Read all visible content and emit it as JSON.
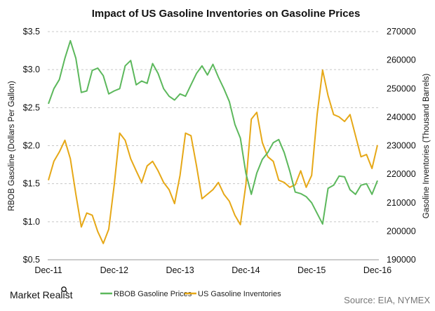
{
  "chart_data": {
    "type": "line",
    "title": "Impact of US Gasoline Inventories on Gasoline Prices",
    "xlabel": "",
    "ylabel_left": "RBOB Gasoline (Dollars Per Gallon)",
    "ylabel_right": "Gasoline Inventories  (Thousand Barrels)",
    "x_ticks": [
      "Dec-11",
      "Dec-12",
      "Dec-13",
      "Dec-14",
      "Dec-15",
      "Dec-16"
    ],
    "y_left_ticks": [
      "$0.5",
      "$1.0",
      "$1.5",
      "$2.0",
      "$2.5",
      "$3.0",
      "$3.5"
    ],
    "y_right_ticks": [
      "190000",
      "200000",
      "210000",
      "220000",
      "230000",
      "240000",
      "250000",
      "260000",
      "270000"
    ],
    "ylim_left": [
      0.5,
      3.5
    ],
    "ylim_right": [
      190000,
      270000
    ],
    "grid": "horizontal dashed",
    "legend": "bottom",
    "x": [
      "2011-12",
      "2012-01",
      "2012-02",
      "2012-03",
      "2012-04",
      "2012-05",
      "2012-06",
      "2012-07",
      "2012-08",
      "2012-09",
      "2012-10",
      "2012-11",
      "2012-12",
      "2013-01",
      "2013-02",
      "2013-03",
      "2013-04",
      "2013-05",
      "2013-06",
      "2013-07",
      "2013-08",
      "2013-09",
      "2013-10",
      "2013-11",
      "2013-12",
      "2014-01",
      "2014-02",
      "2014-03",
      "2014-04",
      "2014-05",
      "2014-06",
      "2014-07",
      "2014-08",
      "2014-09",
      "2014-10",
      "2014-11",
      "2014-12",
      "2015-01",
      "2015-02",
      "2015-03",
      "2015-04",
      "2015-05",
      "2015-06",
      "2015-07",
      "2015-08",
      "2015-09",
      "2015-10",
      "2015-11",
      "2015-12",
      "2016-01",
      "2016-02",
      "2016-03",
      "2016-04",
      "2016-05",
      "2016-06",
      "2016-07",
      "2016-08",
      "2016-09",
      "2016-10",
      "2016-11",
      "2016-12"
    ],
    "series": [
      {
        "name": "RBOB Gasoline Prices",
        "axis": "left",
        "color": "#5cb85c",
        "values": [
          2.55,
          2.75,
          2.87,
          3.15,
          3.38,
          3.15,
          2.7,
          2.72,
          2.99,
          3.02,
          2.92,
          2.68,
          2.72,
          2.75,
          3.05,
          3.12,
          2.8,
          2.85,
          2.82,
          3.08,
          2.95,
          2.75,
          2.65,
          2.6,
          2.68,
          2.65,
          2.8,
          2.95,
          3.05,
          2.93,
          3.07,
          2.9,
          2.75,
          2.58,
          2.28,
          2.1,
          1.64,
          1.36,
          1.64,
          1.82,
          1.91,
          2.04,
          2.08,
          1.91,
          1.67,
          1.39,
          1.37,
          1.33,
          1.25,
          1.11,
          0.97,
          1.44,
          1.48,
          1.6,
          1.59,
          1.42,
          1.36,
          1.48,
          1.5,
          1.36,
          1.54
        ]
      },
      {
        "name": "US Gasoline Inventories",
        "axis": "right",
        "color": "#e6a817",
        "values": [
          217900,
          224500,
          227800,
          231900,
          225400,
          213000,
          201500,
          206400,
          205600,
          199900,
          195700,
          200700,
          216300,
          234400,
          231900,
          225400,
          221200,
          217100,
          222900,
          224500,
          221200,
          217100,
          214600,
          209700,
          219600,
          234400,
          233500,
          222900,
          211400,
          213000,
          214600,
          217100,
          213000,
          210500,
          205600,
          202300,
          216300,
          239300,
          241700,
          231100,
          226100,
          224500,
          217900,
          217100,
          215400,
          216300,
          221200,
          215400,
          219600,
          240900,
          256500,
          247500,
          240900,
          240100,
          238500,
          240900,
          233500,
          226100,
          226900,
          222000,
          230200
        ]
      }
    ]
  },
  "footer": {
    "logo": "Market Realist",
    "source": "Source: EIA, NYMEX"
  }
}
